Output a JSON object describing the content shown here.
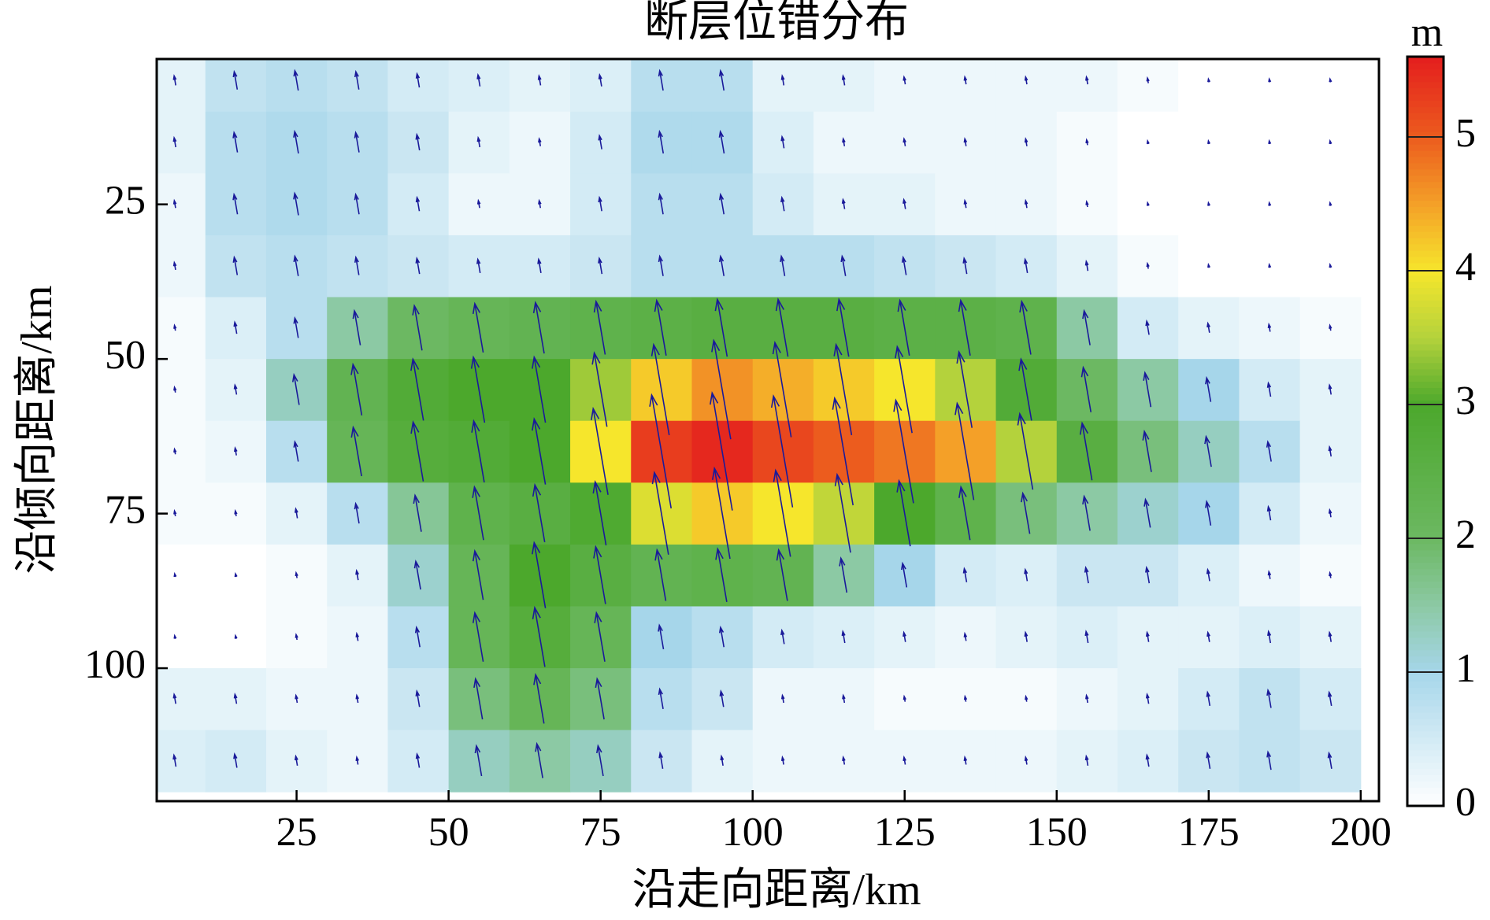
{
  "chart_data": {
    "type": "heatmap",
    "title": "断层位错分布",
    "xlabel": "沿走向距离/km",
    "ylabel": "沿倾向距离/km",
    "x": [
      5,
      15,
      25,
      35,
      45,
      55,
      65,
      75,
      85,
      95,
      105,
      115,
      125,
      135,
      145,
      155,
      165,
      175,
      185,
      195
    ],
    "y": [
      5,
      15,
      25,
      35,
      45,
      55,
      65,
      75,
      85,
      95,
      105,
      115
    ],
    "values": [
      [
        0.3,
        0.7,
        0.8,
        0.7,
        0.5,
        0.4,
        0.3,
        0.4,
        0.8,
        0.8,
        0.3,
        0.3,
        0.2,
        0.2,
        0.2,
        0.2,
        0.1,
        0,
        0,
        0
      ],
      [
        0.3,
        0.8,
        0.9,
        0.8,
        0.6,
        0.3,
        0.2,
        0.5,
        0.9,
        0.9,
        0.4,
        0.2,
        0.2,
        0.2,
        0.2,
        0.1,
        0,
        0,
        0,
        0
      ],
      [
        0.2,
        0.8,
        0.9,
        0.8,
        0.5,
        0.2,
        0.2,
        0.5,
        0.8,
        0.8,
        0.5,
        0.3,
        0.3,
        0.2,
        0.2,
        0.1,
        0,
        0,
        0,
        0
      ],
      [
        0.2,
        0.7,
        0.8,
        0.7,
        0.6,
        0.5,
        0.5,
        0.6,
        0.8,
        0.8,
        0.8,
        0.8,
        0.7,
        0.6,
        0.5,
        0.3,
        0.1,
        0,
        0,
        0
      ],
      [
        0.1,
        0.4,
        0.8,
        1.5,
        2.0,
        2.2,
        2.3,
        2.4,
        2.5,
        2.6,
        2.6,
        2.6,
        2.5,
        2.5,
        2.4,
        1.5,
        0.5,
        0.3,
        0.2,
        0.1
      ],
      [
        0.1,
        0.3,
        1.3,
        2.3,
        2.8,
        3.0,
        3.0,
        3.4,
        4.2,
        4.6,
        4.4,
        4.2,
        4.0,
        3.5,
        2.8,
        2.0,
        1.5,
        1.0,
        0.5,
        0.3
      ],
      [
        0.1,
        0.2,
        0.8,
        2.2,
        2.7,
        2.8,
        3.0,
        4.0,
        5.3,
        5.5,
        5.2,
        5.0,
        4.8,
        4.5,
        3.5,
        2.6,
        1.8,
        1.3,
        0.8,
        0.3
      ],
      [
        0.1,
        0.1,
        0.3,
        0.8,
        1.6,
        2.4,
        2.6,
        2.9,
        3.8,
        4.2,
        4.0,
        3.6,
        3.0,
        2.4,
        1.8,
        1.5,
        1.2,
        1.0,
        0.5,
        0.2
      ],
      [
        0,
        0,
        0.1,
        0.3,
        1.2,
        2.2,
        3.0,
        2.6,
        2.3,
        2.4,
        2.3,
        1.5,
        1.0,
        0.5,
        0.4,
        0.6,
        0.6,
        0.4,
        0.2,
        0.1
      ],
      [
        0,
        0,
        0.1,
        0.2,
        0.8,
        2.2,
        2.7,
        2.2,
        1.0,
        0.8,
        0.5,
        0.4,
        0.3,
        0.2,
        0.3,
        0.4,
        0.3,
        0.3,
        0.4,
        0.3
      ],
      [
        0.3,
        0.3,
        0.2,
        0.2,
        0.6,
        1.8,
        2.2,
        1.8,
        0.8,
        0.6,
        0.2,
        0.2,
        0.1,
        0.1,
        0.1,
        0.2,
        0.3,
        0.5,
        0.7,
        0.5
      ],
      [
        0.4,
        0.5,
        0.3,
        0.2,
        0.5,
        1.3,
        1.5,
        1.3,
        0.6,
        0.3,
        0.2,
        0.2,
        0.2,
        0.2,
        0.2,
        0.3,
        0.4,
        0.6,
        0.7,
        0.6
      ]
    ],
    "xlim": [
      2,
      203
    ],
    "ylim": [
      121.5,
      1.5
    ],
    "xticks": [
      25,
      50,
      75,
      100,
      125,
      150,
      175,
      200
    ],
    "yticks": [
      25,
      50,
      75,
      100
    ],
    "arrow_color": "#1a1a9a",
    "colorbar": {
      "label": "m",
      "lim": [
        0,
        5.6
      ],
      "ticks": [
        0,
        1,
        2,
        3,
        4,
        5
      ],
      "colorscale": [
        [
          0,
          "#ffffff"
        ],
        [
          1,
          "#a6d6ea"
        ],
        [
          1.5,
          "#8cc9a4"
        ],
        [
          2,
          "#6cb862"
        ],
        [
          3,
          "#4ca82c"
        ],
        [
          3.5,
          "#b4d23c"
        ],
        [
          4,
          "#f6e62c"
        ],
        [
          4.5,
          "#f4a028"
        ],
        [
          5,
          "#ec5c1e"
        ],
        [
          5.6,
          "#e41e1e"
        ]
      ]
    }
  }
}
